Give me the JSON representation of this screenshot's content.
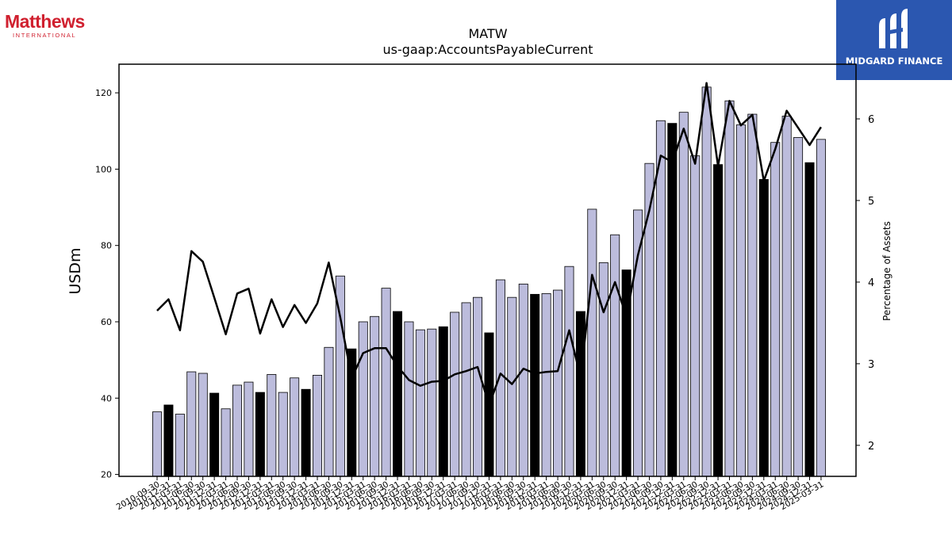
{
  "logos": {
    "left_brand": "Matthews",
    "left_sub": "INTERNATIONAL",
    "right_name": "MIDGARD FINANCE"
  },
  "colors": {
    "bar_default": "#bcbcdc",
    "bar_highlight": "#000000",
    "line": "#000000",
    "left_logo": "#d0202f",
    "right_logo_bg": "#2b57b0"
  },
  "chart_data": {
    "type": "bar",
    "title": "MATW",
    "subtitle": "us-gaap:AccountsPayableCurrent",
    "ylabel": "USDm",
    "y2label": "Percentage of Assets",
    "ylim": [
      19.5,
      127.5
    ],
    "y2lim": [
      1.62,
      6.67
    ],
    "yticks": [
      20,
      40,
      60,
      80,
      100,
      120
    ],
    "y2ticks": [
      2,
      3,
      4,
      5,
      6
    ],
    "grid": false,
    "categories": [
      "2010-09-30",
      "2010-12-31",
      "2011-03-31",
      "2011-06-30",
      "2011-09-30",
      "2011-12-31",
      "2012-03-31",
      "2012-06-30",
      "2012-09-30",
      "2012-12-31",
      "2013-03-31",
      "2013-06-30",
      "2013-09-30",
      "2013-12-31",
      "2014-03-31",
      "2014-06-30",
      "2014-09-30",
      "2014-12-31",
      "2015-03-31",
      "2015-06-30",
      "2015-09-30",
      "2015-12-31",
      "2016-03-31",
      "2016-06-30",
      "2016-09-30",
      "2016-12-31",
      "2017-03-31",
      "2017-06-30",
      "2017-09-30",
      "2017-12-31",
      "2018-03-31",
      "2018-06-30",
      "2018-09-30",
      "2018-12-31",
      "2019-03-31",
      "2019-06-30",
      "2019-09-30",
      "2019-12-31",
      "2020-03-31",
      "2020-06-30",
      "2020-09-30",
      "2020-12-31",
      "2021-03-31",
      "2021-06-30",
      "2021-09-30",
      "2021-12-31",
      "2022-03-31",
      "2022-06-30",
      "2022-09-30",
      "2022-12-31",
      "2023-03-31",
      "2023-06-30",
      "2023-09-30",
      "2023-12-31",
      "2024-03-31",
      "2024-06-30",
      "2024-09-30",
      "2024-12-31",
      "2025-03-31"
    ],
    "series": [
      {
        "type": "bar",
        "axis": "left",
        "values": [
          36.4,
          38.2,
          35.8,
          46.9,
          46.5,
          41.3,
          37.2,
          43.4,
          44.2,
          41.5,
          46.2,
          41.5,
          45.3,
          42.3,
          46.0,
          53.3,
          72.0,
          52.9,
          60.0,
          61.4,
          68.8,
          62.7,
          60.0,
          57.9,
          58.1,
          58.7,
          62.5,
          65.0,
          66.4,
          57.1,
          71.0,
          66.4,
          69.9,
          67.2,
          67.4,
          68.3,
          74.5,
          62.7,
          89.5,
          75.5,
          82.8,
          73.6,
          89.3,
          101.5,
          112.7,
          112.0,
          114.9,
          103.5,
          121.5,
          101.2,
          117.9,
          111.6,
          114.4,
          97.3,
          107.0,
          113.9,
          108.3,
          101.7,
          107.8
        ],
        "highlight": [
          false,
          true,
          false,
          false,
          false,
          true,
          false,
          false,
          false,
          true,
          false,
          false,
          false,
          true,
          false,
          false,
          false,
          true,
          false,
          false,
          false,
          true,
          false,
          false,
          false,
          true,
          false,
          false,
          false,
          true,
          false,
          false,
          false,
          true,
          false,
          false,
          false,
          true,
          false,
          false,
          false,
          true,
          false,
          false,
          false,
          true,
          false,
          false,
          false,
          true,
          false,
          false,
          false,
          true,
          false,
          false,
          false,
          true,
          false
        ]
      },
      {
        "type": "line",
        "axis": "right",
        "values": [
          3.65,
          3.79,
          3.41,
          4.38,
          4.25,
          3.81,
          3.36,
          3.86,
          3.92,
          3.37,
          3.79,
          3.45,
          3.72,
          3.5,
          3.74,
          4.24,
          3.57,
          2.82,
          3.13,
          3.19,
          3.19,
          2.97,
          2.8,
          2.73,
          2.78,
          2.79,
          2.87,
          2.91,
          2.96,
          2.49,
          2.88,
          2.75,
          2.94,
          2.88,
          2.9,
          2.91,
          3.41,
          2.83,
          4.09,
          3.63,
          4.0,
          3.58,
          4.33,
          4.88,
          5.55,
          5.47,
          5.88,
          5.45,
          6.44,
          5.42,
          6.22,
          5.92,
          6.05,
          5.24,
          5.63,
          6.1,
          5.89,
          5.68,
          5.9
        ]
      }
    ]
  }
}
